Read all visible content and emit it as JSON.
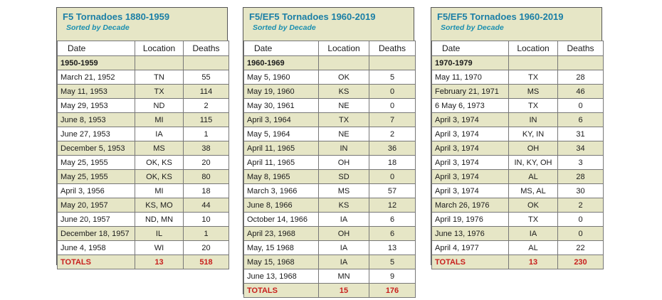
{
  "panels": [
    {
      "title": "F5 Tornadoes 1880-1959",
      "subtitle": "Sorted by Decade",
      "headers": [
        "Date",
        "Location",
        "Deaths"
      ],
      "decade": "1950-1959",
      "rows": [
        [
          "March 21, 1952",
          "TN",
          "55"
        ],
        [
          "May 11, 1953",
          "TX",
          "114"
        ],
        [
          "May 29, 1953",
          "ND",
          "2"
        ],
        [
          "June 8, 1953",
          "MI",
          "115"
        ],
        [
          "June 27, 1953",
          "IA",
          "1"
        ],
        [
          "December 5, 1953",
          "MS",
          "38"
        ],
        [
          "May 25, 1955",
          "OK, KS",
          "20"
        ],
        [
          "May 25, 1955",
          "OK, KS",
          "80"
        ],
        [
          "April 3, 1956",
          "MI",
          "18"
        ],
        [
          "May 20, 1957",
          "KS, MO",
          "44"
        ],
        [
          "June 20, 1957",
          "ND, MN",
          "10"
        ],
        [
          "December 18, 1957",
          "IL",
          "1"
        ],
        [
          "June 4, 1958",
          "WI",
          "20"
        ]
      ],
      "totals": [
        "TOTALS",
        "13",
        "518"
      ]
    },
    {
      "title": "F5/EF5 Tornadoes 1960-2019",
      "subtitle": "Sorted by Decade",
      "headers": [
        "Date",
        "Location",
        "Deaths"
      ],
      "decade": "1960-1969",
      "rows": [
        [
          "May 5, 1960",
          "OK",
          "5"
        ],
        [
          "May 19, 1960",
          "KS",
          "0"
        ],
        [
          "May 30, 1961",
          "NE",
          "0"
        ],
        [
          "April 3, 1964",
          "TX",
          "7"
        ],
        [
          "May 5, 1964",
          "NE",
          "2"
        ],
        [
          "April 11, 1965",
          "IN",
          "36"
        ],
        [
          "April 11, 1965",
          "OH",
          "18"
        ],
        [
          "May 8, 1965",
          "SD",
          "0"
        ],
        [
          "March 3, 1966",
          "MS",
          "57"
        ],
        [
          "June 8, 1966",
          "KS",
          "12"
        ],
        [
          "October 14, 1966",
          "IA",
          "6"
        ],
        [
          "April 23, 1968",
          "OH",
          "6"
        ],
        [
          "May, 15 1968",
          "IA",
          "13"
        ],
        [
          "May 15, 1968",
          "IA",
          "5"
        ],
        [
          "June 13, 1968",
          "MN",
          "9"
        ]
      ],
      "totals": [
        "TOTALS",
        "15",
        "176"
      ]
    },
    {
      "title": "F5/EF5 Tornadoes 1960-2019",
      "subtitle": "Sorted by Decade",
      "headers": [
        "Date",
        "Location",
        "Deaths"
      ],
      "decade": "1970-1979",
      "rows": [
        [
          "May 11, 1970",
          "TX",
          "28"
        ],
        [
          "February 21, 1971",
          "MS",
          "46"
        ],
        [
          "6 May 6, 1973",
          "TX",
          "0"
        ],
        [
          "April 3, 1974",
          "IN",
          "6"
        ],
        [
          "April 3, 1974",
          "KY, IN",
          "31"
        ],
        [
          "April 3, 1974",
          "OH",
          "34"
        ],
        [
          "April 3, 1974",
          "IN, KY, OH",
          "3"
        ],
        [
          "April 3, 1974",
          "AL",
          "28"
        ],
        [
          "April 3, 1974",
          "MS, AL",
          "30"
        ],
        [
          "March 26, 1976",
          "OK",
          "2"
        ],
        [
          "April 19, 1976",
          "TX",
          "0"
        ],
        [
          "June 13, 1976",
          "IA",
          "0"
        ],
        [
          "April 4, 1977",
          "AL",
          "22"
        ]
      ],
      "totals": [
        "TOTALS",
        "13",
        "230"
      ]
    }
  ]
}
